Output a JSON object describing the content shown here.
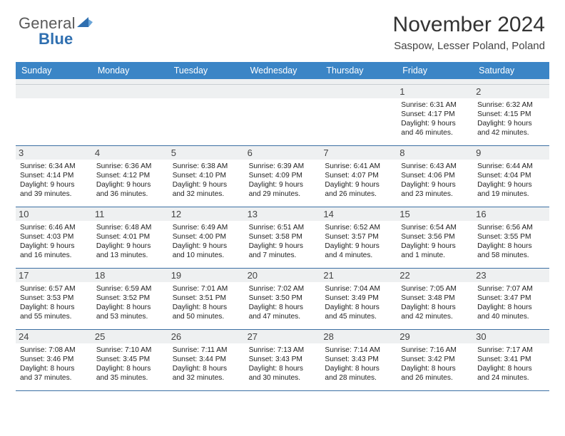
{
  "logo": {
    "word1": "General",
    "word2": "Blue"
  },
  "header": {
    "title": "November 2024",
    "location": "Saspow, Lesser Poland, Poland"
  },
  "colors": {
    "dow_bg": "#3b85c6",
    "dow_fg": "#ffffff",
    "daynum_bg": "#eef0f1",
    "rule": "#3b6fa3"
  },
  "dow": [
    "Sunday",
    "Monday",
    "Tuesday",
    "Wednesday",
    "Thursday",
    "Friday",
    "Saturday"
  ],
  "weeks": [
    [
      {
        "n": "",
        "sunrise": "",
        "sunset": "",
        "daylight": ""
      },
      {
        "n": "",
        "sunrise": "",
        "sunset": "",
        "daylight": ""
      },
      {
        "n": "",
        "sunrise": "",
        "sunset": "",
        "daylight": ""
      },
      {
        "n": "",
        "sunrise": "",
        "sunset": "",
        "daylight": ""
      },
      {
        "n": "",
        "sunrise": "",
        "sunset": "",
        "daylight": ""
      },
      {
        "n": "1",
        "sunrise": "Sunrise: 6:31 AM",
        "sunset": "Sunset: 4:17 PM",
        "daylight": "Daylight: 9 hours and 46 minutes."
      },
      {
        "n": "2",
        "sunrise": "Sunrise: 6:32 AM",
        "sunset": "Sunset: 4:15 PM",
        "daylight": "Daylight: 9 hours and 42 minutes."
      }
    ],
    [
      {
        "n": "3",
        "sunrise": "Sunrise: 6:34 AM",
        "sunset": "Sunset: 4:14 PM",
        "daylight": "Daylight: 9 hours and 39 minutes."
      },
      {
        "n": "4",
        "sunrise": "Sunrise: 6:36 AM",
        "sunset": "Sunset: 4:12 PM",
        "daylight": "Daylight: 9 hours and 36 minutes."
      },
      {
        "n": "5",
        "sunrise": "Sunrise: 6:38 AM",
        "sunset": "Sunset: 4:10 PM",
        "daylight": "Daylight: 9 hours and 32 minutes."
      },
      {
        "n": "6",
        "sunrise": "Sunrise: 6:39 AM",
        "sunset": "Sunset: 4:09 PM",
        "daylight": "Daylight: 9 hours and 29 minutes."
      },
      {
        "n": "7",
        "sunrise": "Sunrise: 6:41 AM",
        "sunset": "Sunset: 4:07 PM",
        "daylight": "Daylight: 9 hours and 26 minutes."
      },
      {
        "n": "8",
        "sunrise": "Sunrise: 6:43 AM",
        "sunset": "Sunset: 4:06 PM",
        "daylight": "Daylight: 9 hours and 23 minutes."
      },
      {
        "n": "9",
        "sunrise": "Sunrise: 6:44 AM",
        "sunset": "Sunset: 4:04 PM",
        "daylight": "Daylight: 9 hours and 19 minutes."
      }
    ],
    [
      {
        "n": "10",
        "sunrise": "Sunrise: 6:46 AM",
        "sunset": "Sunset: 4:03 PM",
        "daylight": "Daylight: 9 hours and 16 minutes."
      },
      {
        "n": "11",
        "sunrise": "Sunrise: 6:48 AM",
        "sunset": "Sunset: 4:01 PM",
        "daylight": "Daylight: 9 hours and 13 minutes."
      },
      {
        "n": "12",
        "sunrise": "Sunrise: 6:49 AM",
        "sunset": "Sunset: 4:00 PM",
        "daylight": "Daylight: 9 hours and 10 minutes."
      },
      {
        "n": "13",
        "sunrise": "Sunrise: 6:51 AM",
        "sunset": "Sunset: 3:58 PM",
        "daylight": "Daylight: 9 hours and 7 minutes."
      },
      {
        "n": "14",
        "sunrise": "Sunrise: 6:52 AM",
        "sunset": "Sunset: 3:57 PM",
        "daylight": "Daylight: 9 hours and 4 minutes."
      },
      {
        "n": "15",
        "sunrise": "Sunrise: 6:54 AM",
        "sunset": "Sunset: 3:56 PM",
        "daylight": "Daylight: 9 hours and 1 minute."
      },
      {
        "n": "16",
        "sunrise": "Sunrise: 6:56 AM",
        "sunset": "Sunset: 3:55 PM",
        "daylight": "Daylight: 8 hours and 58 minutes."
      }
    ],
    [
      {
        "n": "17",
        "sunrise": "Sunrise: 6:57 AM",
        "sunset": "Sunset: 3:53 PM",
        "daylight": "Daylight: 8 hours and 55 minutes."
      },
      {
        "n": "18",
        "sunrise": "Sunrise: 6:59 AM",
        "sunset": "Sunset: 3:52 PM",
        "daylight": "Daylight: 8 hours and 53 minutes."
      },
      {
        "n": "19",
        "sunrise": "Sunrise: 7:01 AM",
        "sunset": "Sunset: 3:51 PM",
        "daylight": "Daylight: 8 hours and 50 minutes."
      },
      {
        "n": "20",
        "sunrise": "Sunrise: 7:02 AM",
        "sunset": "Sunset: 3:50 PM",
        "daylight": "Daylight: 8 hours and 47 minutes."
      },
      {
        "n": "21",
        "sunrise": "Sunrise: 7:04 AM",
        "sunset": "Sunset: 3:49 PM",
        "daylight": "Daylight: 8 hours and 45 minutes."
      },
      {
        "n": "22",
        "sunrise": "Sunrise: 7:05 AM",
        "sunset": "Sunset: 3:48 PM",
        "daylight": "Daylight: 8 hours and 42 minutes."
      },
      {
        "n": "23",
        "sunrise": "Sunrise: 7:07 AM",
        "sunset": "Sunset: 3:47 PM",
        "daylight": "Daylight: 8 hours and 40 minutes."
      }
    ],
    [
      {
        "n": "24",
        "sunrise": "Sunrise: 7:08 AM",
        "sunset": "Sunset: 3:46 PM",
        "daylight": "Daylight: 8 hours and 37 minutes."
      },
      {
        "n": "25",
        "sunrise": "Sunrise: 7:10 AM",
        "sunset": "Sunset: 3:45 PM",
        "daylight": "Daylight: 8 hours and 35 minutes."
      },
      {
        "n": "26",
        "sunrise": "Sunrise: 7:11 AM",
        "sunset": "Sunset: 3:44 PM",
        "daylight": "Daylight: 8 hours and 32 minutes."
      },
      {
        "n": "27",
        "sunrise": "Sunrise: 7:13 AM",
        "sunset": "Sunset: 3:43 PM",
        "daylight": "Daylight: 8 hours and 30 minutes."
      },
      {
        "n": "28",
        "sunrise": "Sunrise: 7:14 AM",
        "sunset": "Sunset: 3:43 PM",
        "daylight": "Daylight: 8 hours and 28 minutes."
      },
      {
        "n": "29",
        "sunrise": "Sunrise: 7:16 AM",
        "sunset": "Sunset: 3:42 PM",
        "daylight": "Daylight: 8 hours and 26 minutes."
      },
      {
        "n": "30",
        "sunrise": "Sunrise: 7:17 AM",
        "sunset": "Sunset: 3:41 PM",
        "daylight": "Daylight: 8 hours and 24 minutes."
      }
    ]
  ]
}
